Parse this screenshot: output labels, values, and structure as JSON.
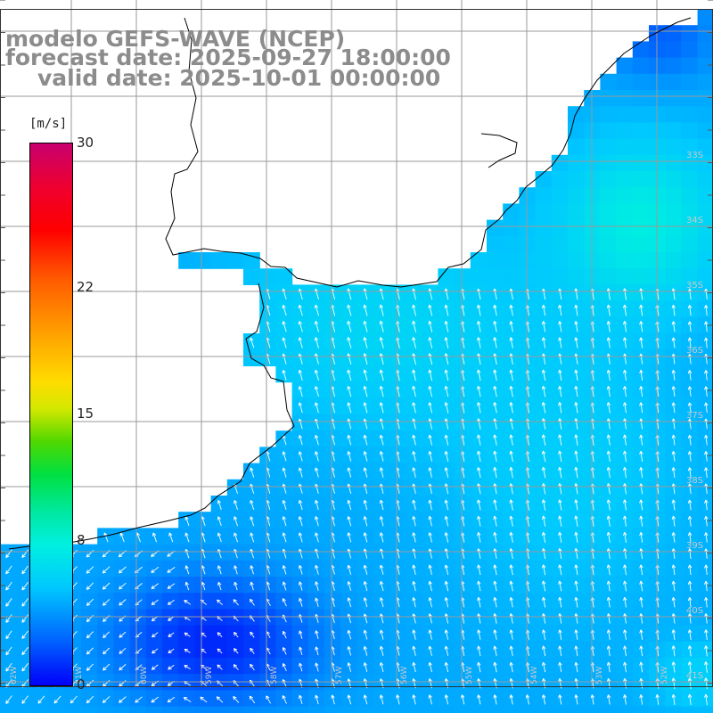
{
  "title": {
    "model": "modelo GEFS-WAVE (NCEP)",
    "forecast": "forecast date: 2025-09-27 18:00:00",
    "valid": "valid date: 2025-10-01 00:00:00"
  },
  "colorbar": {
    "unit": "[m/s]",
    "ticks": [
      {
        "label": "30",
        "value": 30
      },
      {
        "label": "22",
        "value": 22
      },
      {
        "label": "15",
        "value": 15
      },
      {
        "label": "8",
        "value": 8
      },
      {
        "label": "0",
        "value": 0
      }
    ],
    "colors": [
      "#0000f8",
      "#0060ff",
      "#00c8ff",
      "#00f0e0",
      "#00e8a0",
      "#00e040",
      "#50d800",
      "#ffdc00",
      "#ff5a00",
      "#ee0030",
      "#c8006e"
    ]
  },
  "map": {
    "lat_labels": [
      "33S",
      "34S",
      "35S",
      "36S",
      "37S",
      "38S",
      "39S",
      "40S",
      "41S"
    ],
    "lon_labels": [
      "62W",
      "61W",
      "60W",
      "59W",
      "58W",
      "57W",
      "56W",
      "55W",
      "54W",
      "53W",
      "52W"
    ],
    "colors": {
      "land": "#ffffff",
      "grid": "#9a9a9a",
      "coast": "#000000",
      "arrow": "#ffffff"
    }
  }
}
